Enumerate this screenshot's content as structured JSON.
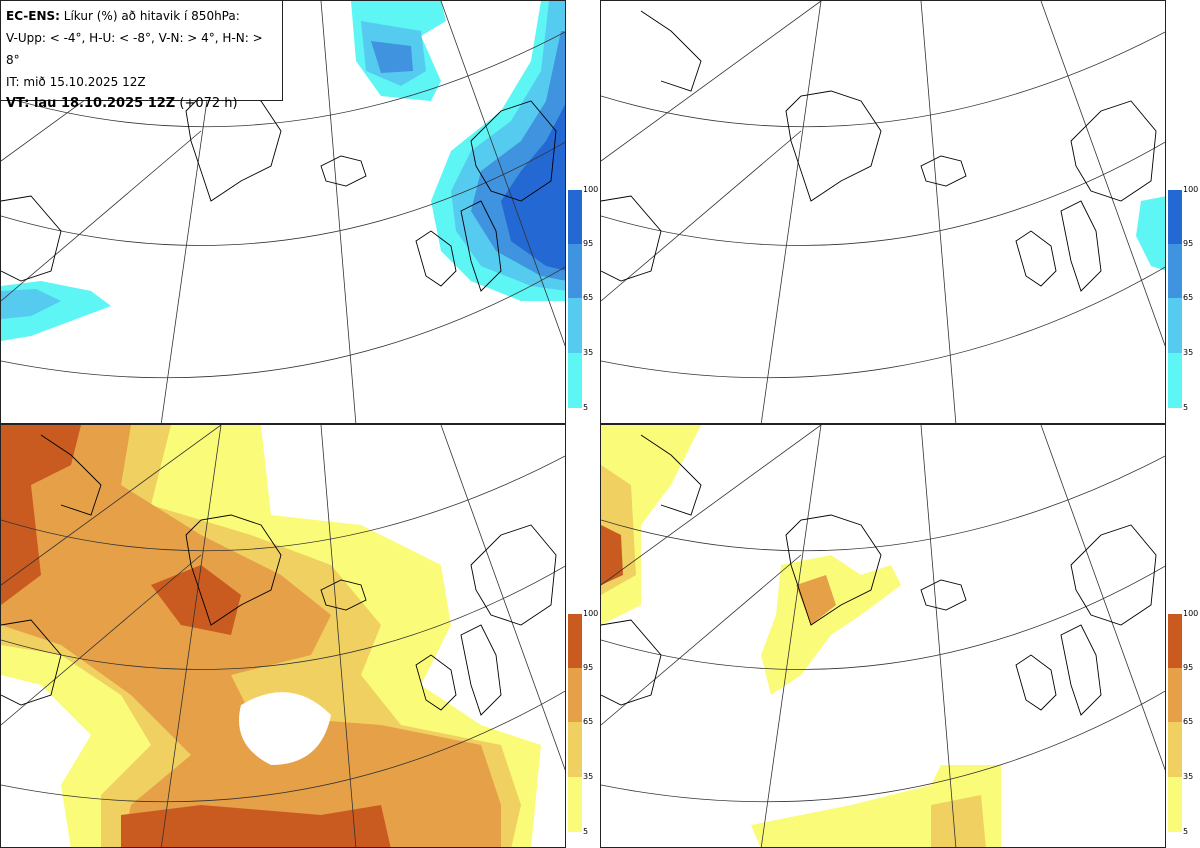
{
  "header": {
    "model": "EC-ENS:",
    "title": "Líkur (%) að hitavik í 850hPa:",
    "thresholds": "V-Upp: < -4°, H-U: < -8°, V-N: > 4°, H-N: > 8°",
    "init_time": "IT: mið 15.10.2025 12Z",
    "valid_label": "VT: lau 18.10.2025 12Z",
    "lead": "(+072 h)"
  },
  "panels": [
    {
      "id": "upper-left",
      "meaning": "V-Upp",
      "field": "cold"
    },
    {
      "id": "upper-right",
      "meaning": "H-U",
      "field": "cold"
    },
    {
      "id": "lower-left",
      "meaning": "V-N",
      "field": "warm"
    },
    {
      "id": "lower-right",
      "meaning": "H-N",
      "field": "warm"
    }
  ],
  "colorbar_ticks": [
    "100",
    "95",
    "65",
    "35",
    "5"
  ],
  "colors": {
    "cold": [
      "#5ef5f5",
      "#55cbef",
      "#3f93df",
      "#2468d4"
    ],
    "warm": [
      "#fbfb7a",
      "#f0d060",
      "#e5a048",
      "#c95a20"
    ],
    "coast": "#000000",
    "grid": "#333333"
  }
}
